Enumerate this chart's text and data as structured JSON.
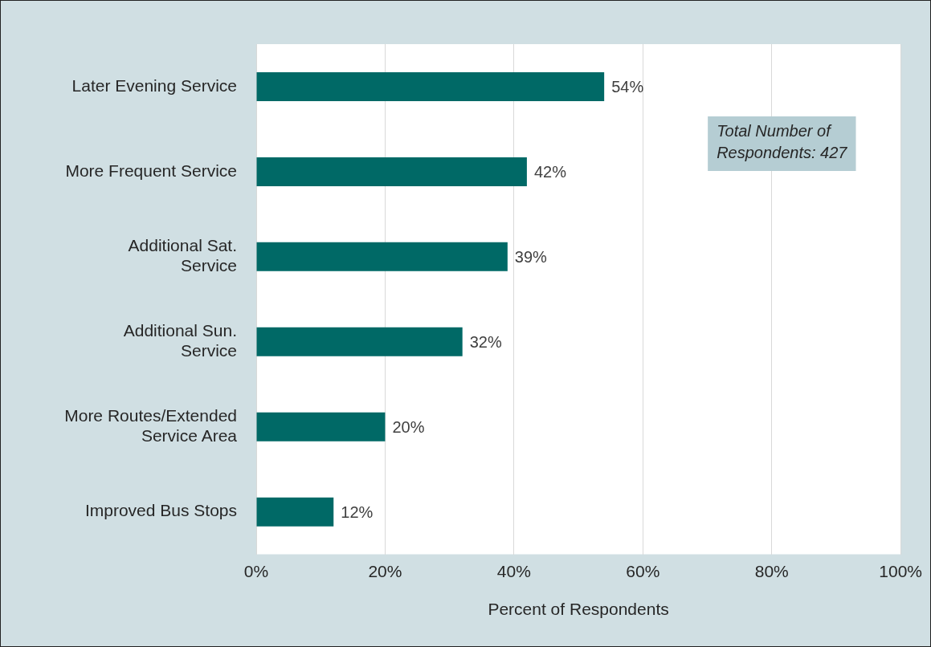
{
  "chart_data": {
    "type": "bar",
    "orientation": "horizontal",
    "xlabel": "Percent of Respondents",
    "categories": [
      "Later Evening Service",
      "More Frequent Service",
      "Additional Sat. Service",
      "Additional Sun. Service",
      "More Routes/Extended Service Area",
      "Improved Bus Stops"
    ],
    "values": [
      54,
      42,
      39,
      32,
      20,
      12
    ],
    "value_labels": [
      "54%",
      "42%",
      "39%",
      "32%",
      "20%",
      "12%"
    ],
    "color": "#006966",
    "xlim": [
      0,
      100
    ],
    "xticks": [
      {
        "value": 0,
        "label": "0%"
      },
      {
        "value": 20,
        "label": "20%"
      },
      {
        "value": 40,
        "label": "40%"
      },
      {
        "value": 60,
        "label": "60%"
      },
      {
        "value": 80,
        "label": "80%"
      },
      {
        "value": 100,
        "label": "100%"
      }
    ],
    "grid": "x",
    "annotations": [
      "Total Number of Respondents: 427"
    ]
  }
}
